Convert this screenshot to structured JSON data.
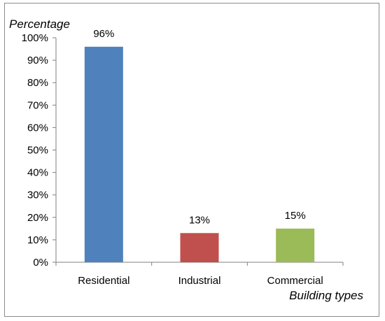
{
  "chart_data": {
    "type": "bar",
    "title": "",
    "xlabel": "Building types",
    "ylabel": "Percentage",
    "categories": [
      "Residential",
      "Industrial",
      "Commercial"
    ],
    "values": [
      96,
      13,
      15
    ],
    "value_labels": [
      "96%",
      "13%",
      "15%"
    ],
    "bar_colors": [
      "#4F81BD",
      "#C0504D",
      "#9BBB59"
    ],
    "ylim": [
      0,
      100
    ],
    "yticks": [
      0,
      10,
      20,
      30,
      40,
      50,
      60,
      70,
      80,
      90,
      100
    ],
    "ytick_labels": [
      "0%",
      "10%",
      "20%",
      "30%",
      "40%",
      "50%",
      "60%",
      "70%",
      "80%",
      "90%",
      "100%"
    ],
    "grid": false,
    "legend": "none"
  }
}
